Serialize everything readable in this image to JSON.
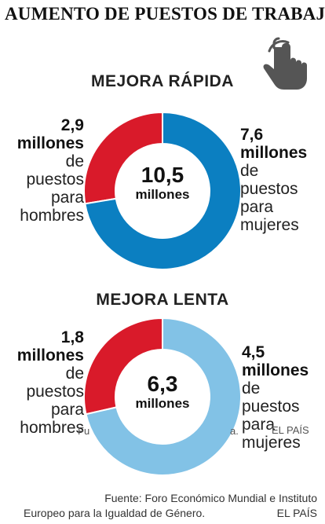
{
  "title": "AUMENTO DE PUESTOS DE TRABAJO",
  "icon": "touch-hand-icon",
  "colors": {
    "men": "#d91a2a",
    "women_fast": "#0b7fc1",
    "women_slow": "#82c2e6"
  },
  "chart_data": [
    {
      "type": "pie",
      "title": "MEJORA RÁPIDA",
      "center_value": "10,5",
      "center_unit": "millones",
      "series": [
        {
          "values": [
            2.9,
            7.6
          ]
        }
      ],
      "categories": [
        "hombres",
        "mujeres"
      ],
      "labels": {
        "men": {
          "value": "2,9",
          "unit": "millones",
          "text": [
            "de",
            "puestos",
            "para",
            "hombres"
          ]
        },
        "women": {
          "value": "7,6",
          "unit": "millones",
          "text": [
            "de",
            "puestos",
            "para",
            "mujeres"
          ]
        }
      }
    },
    {
      "type": "pie",
      "title": "MEJORA LENTA",
      "center_value": "6,3",
      "center_unit": "millones",
      "series": [
        {
          "values": [
            1.8,
            4.5
          ]
        }
      ],
      "categories": [
        "hombres",
        "mujeres"
      ],
      "labels": {
        "men": {
          "value": "1,8",
          "unit": "millones",
          "text": [
            "de",
            "puestos",
            "para",
            "hombres"
          ]
        },
        "women": {
          "value": "4,5",
          "unit": "millones",
          "text": [
            "de",
            "puestos",
            "para",
            "mujeres"
          ]
        }
      }
    }
  ],
  "ghost_text": {
    "a": "Fu",
    "b": "a.",
    "c": "EL PAÍS"
  },
  "source": {
    "line1": "Fuente: Foro Económico Mundial e Instituto",
    "line2": "Europeo para la Igualdad de Género.",
    "credit": "EL PAÍS"
  }
}
